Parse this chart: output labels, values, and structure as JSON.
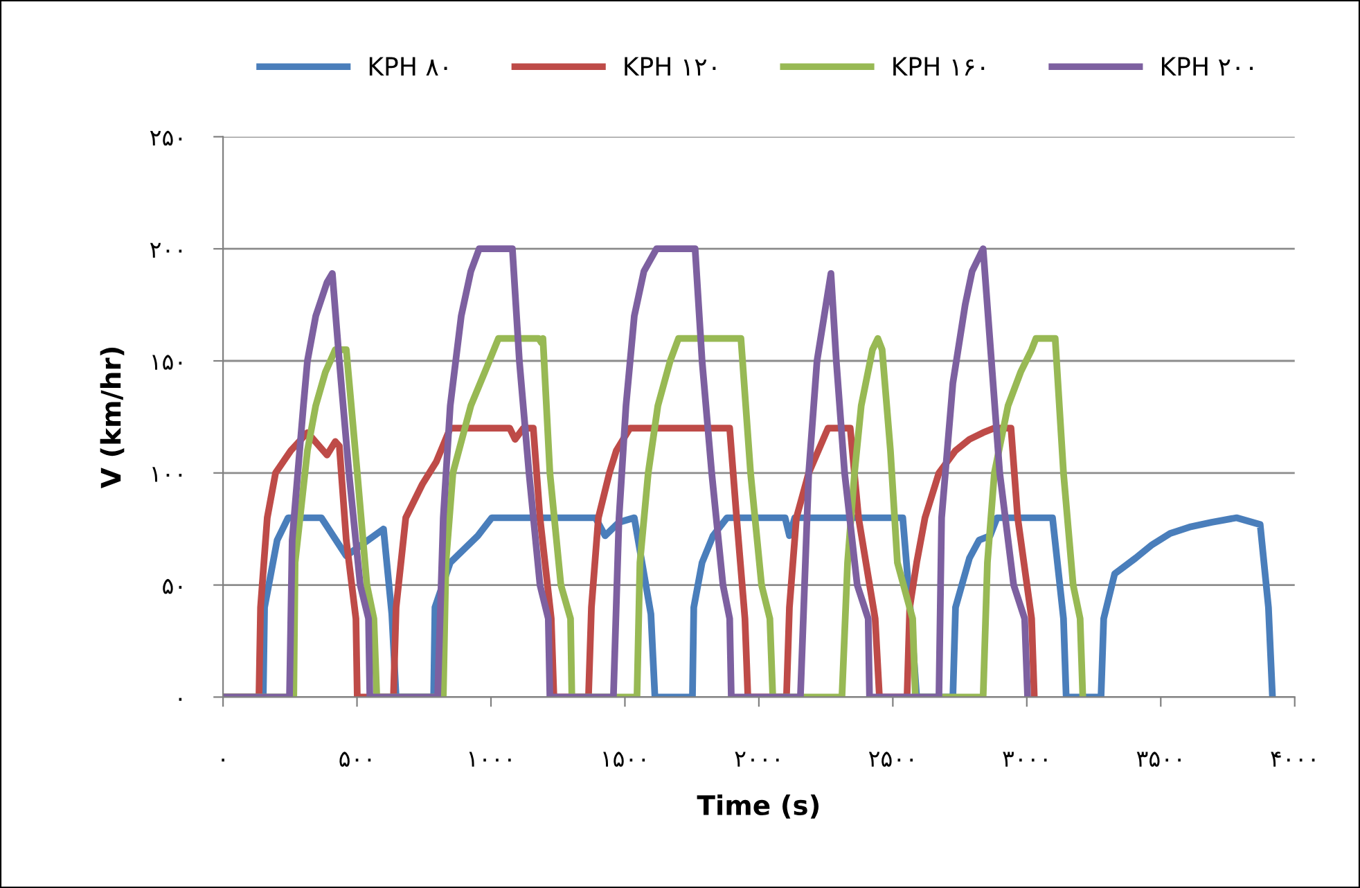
{
  "chart_data": {
    "type": "line",
    "xlabel": "Time (s)",
    "ylabel": "V (km/hr)",
    "xlim": [
      0,
      4000
    ],
    "ylim": [
      0,
      250
    ],
    "xticks": [
      {
        "value": 0,
        "label": "۰"
      },
      {
        "value": 500,
        "label": "۵۰۰"
      },
      {
        "value": 1000,
        "label": "۱۰۰۰"
      },
      {
        "value": 1500,
        "label": "۱۵۰۰"
      },
      {
        "value": 2000,
        "label": "۲۰۰۰"
      },
      {
        "value": 2500,
        "label": "۲۵۰۰"
      },
      {
        "value": 3000,
        "label": "۳۰۰۰"
      },
      {
        "value": 3500,
        "label": "۳۵۰۰"
      },
      {
        "value": 4000,
        "label": "۴۰۰۰"
      }
    ],
    "yticks": [
      {
        "value": 0,
        "label": "۰"
      },
      {
        "value": 50,
        "label": "۵۰"
      },
      {
        "value": 100,
        "label": "۱۰۰"
      },
      {
        "value": 150,
        "label": "۱۵۰"
      },
      {
        "value": 200,
        "label": "۲۰۰"
      },
      {
        "value": 250,
        "label": "۲۵۰"
      }
    ],
    "grid": "y",
    "legend": "top",
    "marker": "none",
    "line_style": "solid",
    "series": [
      {
        "name": "KPH ۸۰",
        "color": "#4a7ebb",
        "x": [
          0,
          150,
          155,
          202,
          243,
          367,
          460,
          599,
          630,
          646,
          786,
          791,
          848,
          951,
          1003,
          1390,
          1426,
          1478,
          1535,
          1597,
          1612,
          1752,
          1757,
          1788,
          1829,
          1881,
          2098,
          2114,
          2134,
          2537,
          2568,
          2589,
          2724,
          2734,
          2786,
          2822,
          2863,
          2889,
          3096,
          3137,
          3147,
          3277,
          3287,
          3328,
          3406,
          3468,
          3535,
          3612,
          3690,
          3783,
          3871,
          3902,
          3917
        ],
        "values": [
          0,
          0,
          40,
          70,
          80,
          80,
          63,
          75,
          37,
          0,
          0,
          40,
          60,
          72,
          80,
          80,
          72,
          78,
          80,
          37,
          0,
          0,
          40,
          60,
          72,
          80,
          80,
          72,
          80,
          80,
          35,
          0,
          0,
          40,
          62,
          70,
          72,
          80,
          80,
          35,
          0,
          0,
          35,
          55,
          62,
          68,
          73,
          76,
          78,
          80,
          77,
          40,
          0
        ]
      },
      {
        "name": "KPH ۱۲۰",
        "color": "#be4b48",
        "x": [
          0,
          134,
          140,
          165,
          196,
          253,
          315,
          388,
          419,
          434,
          460,
          496,
          501,
          636,
          646,
          682,
          744,
          796,
          848,
          1070,
          1090,
          1121,
          1158,
          1183,
          1225,
          1235,
          1364,
          1375,
          1401,
          1442,
          1468,
          1519,
          1891,
          1917,
          1948,
          1959,
          2103,
          2114,
          2140,
          2186,
          2258,
          2341,
          2372,
          2434,
          2450,
          2553,
          2563,
          2589,
          2620,
          2672,
          2734,
          2786,
          2837,
          2879,
          2941,
          2966,
          3018,
          3028
        ],
        "values": [
          0,
          0,
          40,
          80,
          100,
          110,
          118,
          108,
          114,
          112,
          70,
          35,
          0,
          0,
          40,
          80,
          95,
          105,
          120,
          120,
          115,
          120,
          120,
          80,
          35,
          0,
          0,
          40,
          80,
          100,
          110,
          120,
          120,
          80,
          35,
          0,
          0,
          40,
          80,
          100,
          120,
          120,
          80,
          35,
          0,
          0,
          40,
          60,
          80,
          100,
          110,
          115,
          118,
          120,
          120,
          80,
          35,
          0
        ]
      },
      {
        "name": "KPH ۱۶۰",
        "color": "#98b954",
        "x": [
          0,
          264,
          269,
          315,
          346,
          382,
          419,
          460,
          501,
          537,
          563,
          574,
          822,
          832,
          858,
          925,
          977,
          1028,
          1178,
          1189,
          1194,
          1220,
          1261,
          1297,
          1302,
          1545,
          1556,
          1587,
          1623,
          1669,
          1700,
          1933,
          1969,
          2010,
          2041,
          2052,
          2310,
          2331,
          2357,
          2382,
          2424,
          2444,
          2460,
          2491,
          2517,
          2574,
          2584,
          2837,
          2853,
          2879,
          2930,
          2977,
          3018,
          3034,
          3106,
          3137,
          3173,
          3199,
          3209
        ],
        "values": [
          0,
          0,
          60,
          110,
          130,
          145,
          155,
          155,
          100,
          50,
          35,
          0,
          0,
          60,
          100,
          130,
          145,
          160,
          160,
          158,
          160,
          100,
          50,
          35,
          0,
          0,
          60,
          100,
          130,
          150,
          160,
          160,
          100,
          50,
          35,
          0,
          0,
          60,
          100,
          130,
          155,
          160,
          155,
          110,
          60,
          35,
          0,
          0,
          60,
          100,
          130,
          145,
          155,
          160,
          160,
          100,
          50,
          35,
          0
        ]
      },
      {
        "name": "KPH ۲۰۰",
        "color": "#7d60a0",
        "x": [
          0,
          248,
          258,
          300,
          315,
          346,
          388,
          408,
          434,
          470,
          512,
          543,
          548,
          801,
          822,
          848,
          889,
          925,
          956,
          1080,
          1106,
          1142,
          1183,
          1214,
          1220,
          1457,
          1478,
          1504,
          1535,
          1571,
          1618,
          1762,
          1788,
          1824,
          1866,
          1891,
          1897,
          2155,
          2186,
          2217,
          2269,
          2289,
          2320,
          2367,
          2408,
          2413,
          2672,
          2682,
          2724,
          2770,
          2796,
          2837,
          2868,
          2899,
          2951,
          2992,
          3003
        ],
        "values": [
          0,
          0,
          70,
          130,
          150,
          170,
          185,
          189,
          150,
          100,
          50,
          35,
          0,
          0,
          80,
          130,
          170,
          190,
          200,
          200,
          150,
          100,
          50,
          35,
          0,
          0,
          80,
          130,
          170,
          190,
          200,
          200,
          150,
          100,
          50,
          35,
          0,
          0,
          100,
          150,
          189,
          150,
          100,
          50,
          35,
          0,
          0,
          80,
          140,
          175,
          190,
          200,
          150,
          100,
          50,
          35,
          0
        ]
      }
    ]
  }
}
